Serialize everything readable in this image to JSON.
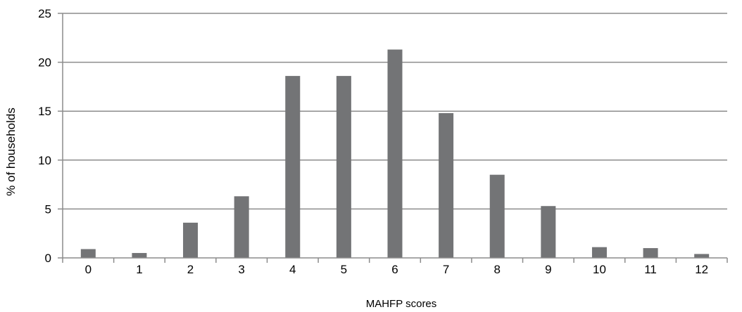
{
  "chart_data": {
    "type": "bar",
    "title": "",
    "xlabel": "MAHFP scores",
    "ylabel": "% of households",
    "categories": [
      "0",
      "1",
      "2",
      "3",
      "4",
      "5",
      "6",
      "7",
      "8",
      "9",
      "10",
      "11",
      "12"
    ],
    "values": [
      0.9,
      0.5,
      3.6,
      6.3,
      18.6,
      18.6,
      21.3,
      14.8,
      8.5,
      5.3,
      1.1,
      1.0,
      0.4
    ],
    "ylim": [
      0,
      25
    ],
    "yticks": [
      0,
      5,
      10,
      15,
      20,
      25
    ],
    "grid": true,
    "legend": "none",
    "colors": {
      "bar": "#737476",
      "grid": "#8c8c8c",
      "axis": "#8c8c8c"
    }
  }
}
